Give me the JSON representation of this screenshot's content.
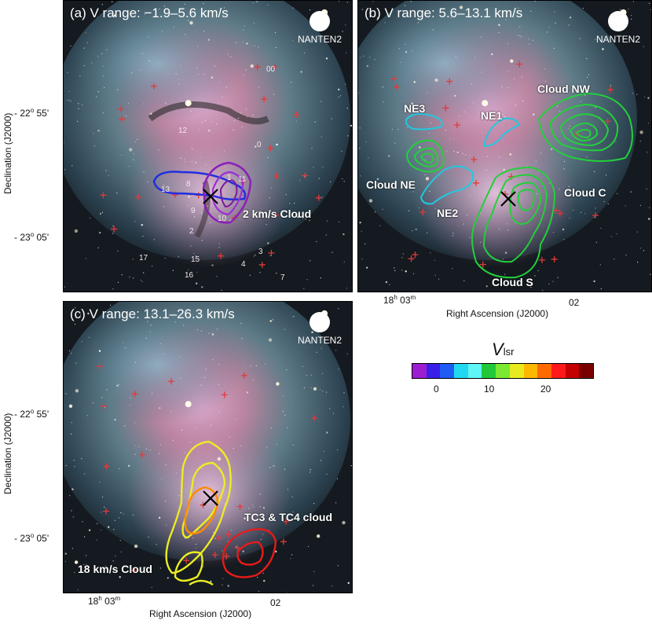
{
  "panels": {
    "a": {
      "title": "(a) V range: −1.9–5.6 km/s",
      "telescope": "NANTEN2",
      "labels": {
        "cloud": "2 km/s Cloud"
      },
      "star_ids": [
        "00",
        "12",
        "0",
        "13",
        "8",
        "1",
        "11",
        "9",
        "10",
        "2",
        "3",
        "4",
        "17",
        "15",
        "16",
        "7"
      ]
    },
    "b": {
      "title": "(b) V range: 5.6–13.1 km/s",
      "telescope": "NANTEN2",
      "labels": {
        "ne3": "NE3",
        "ne1": "NE1",
        "cloud_nw": "Cloud NW",
        "cloud_ne": "Cloud NE",
        "ne2": "NE2",
        "cloud_c": "Cloud C",
        "cloud_s": "Cloud S"
      }
    },
    "c": {
      "title": "(c) V range: 13.1–26.3 km/s",
      "telescope": "NANTEN2",
      "labels": {
        "tc_cloud": "TC3 & TC4 cloud",
        "cloud_18": "18 km/s Cloud"
      }
    }
  },
  "axes": {
    "ylabel": "Declination (J2000)",
    "xlabel": "Right Ascension (J2000)",
    "dec_ticks": [
      "- 22° 55'",
      "- 23° 05'"
    ],
    "dec_tick_parts": [
      {
        "pre": "- 22",
        "deg": "o",
        "post": " 55'"
      },
      {
        "pre": "- 23",
        "deg": "o",
        "post": " 05'"
      }
    ],
    "ra_tick_1": {
      "h": "18",
      "hsup": "h",
      "m": " 03",
      "msup": "m"
    },
    "ra_tick_2": "02"
  },
  "colorbar": {
    "title_main": "V",
    "title_sub": "lsr",
    "ticks": [
      "0",
      "10",
      "20"
    ],
    "colors": [
      "#9b1fd0",
      "#3a1fe8",
      "#1f5cf5",
      "#22d8f0",
      "#5ff5f5",
      "#22c83a",
      "#7be832",
      "#e8ea20",
      "#ffb800",
      "#ff6a00",
      "#ff1a1a",
      "#c40000",
      "#7a0000"
    ]
  }
}
